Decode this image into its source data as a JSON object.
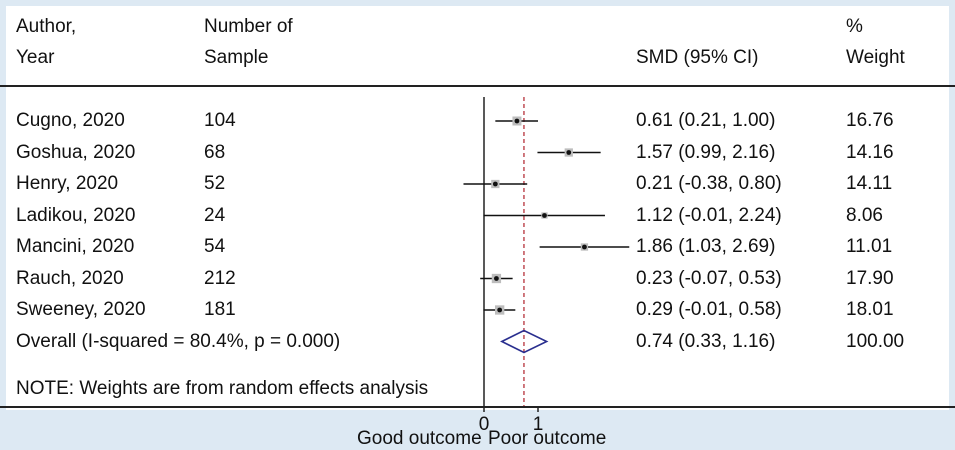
{
  "headers": {
    "author_line1": "Author,",
    "author_line2": "Year",
    "sample_line1": "Number of",
    "sample_line2": "Sample",
    "smd": "SMD (95% CI)",
    "weight_line1": "%",
    "weight_line2": "Weight"
  },
  "note": "NOTE: Weights are from random effects analysis",
  "x_axis": {
    "tick_labels": [
      "0",
      "1"
    ],
    "left_label": "Good outcome",
    "right_label": "Poor outcome"
  },
  "chart_data": {
    "type": "forest",
    "x_null": 0,
    "x_pooled": 0.74,
    "studies": [
      {
        "label": "Cugno, 2020",
        "n": "104",
        "smd": 0.61,
        "lo": 0.21,
        "hi": 1.0,
        "ci_text": "0.61 (0.21, 1.00)",
        "weight": "16.76"
      },
      {
        "label": "Goshua, 2020",
        "n": "68",
        "smd": 1.57,
        "lo": 0.99,
        "hi": 2.16,
        "ci_text": "1.57 (0.99, 2.16)",
        "weight": "14.16"
      },
      {
        "label": "Henry, 2020",
        "n": "52",
        "smd": 0.21,
        "lo": -0.38,
        "hi": 0.8,
        "ci_text": "0.21 (-0.38, 0.80)",
        "weight": "14.11"
      },
      {
        "label": "Ladikou, 2020",
        "n": "24",
        "smd": 1.12,
        "lo": -0.01,
        "hi": 2.24,
        "ci_text": "1.12 (-0.01, 2.24)",
        "weight": "8.06"
      },
      {
        "label": "Mancini, 2020",
        "n": "54",
        "smd": 1.86,
        "lo": 1.03,
        "hi": 2.69,
        "ci_text": "1.86 (1.03, 2.69)",
        "weight": "11.01"
      },
      {
        "label": "Rauch, 2020",
        "n": "212",
        "smd": 0.23,
        "lo": -0.07,
        "hi": 0.53,
        "ci_text": "0.23 (-0.07, 0.53)",
        "weight": "17.90"
      },
      {
        "label": "Sweeney, 2020",
        "n": "181",
        "smd": 0.29,
        "lo": -0.01,
        "hi": 0.58,
        "ci_text": "0.29 (-0.01, 0.58)",
        "weight": "18.01"
      }
    ],
    "overall": {
      "label": "Overall  (I-squared = 80.4%, p = 0.000)",
      "smd": 0.74,
      "lo": 0.33,
      "hi": 1.16,
      "ci_text": "0.74 (0.33, 1.16)",
      "weight": "100.00"
    }
  }
}
